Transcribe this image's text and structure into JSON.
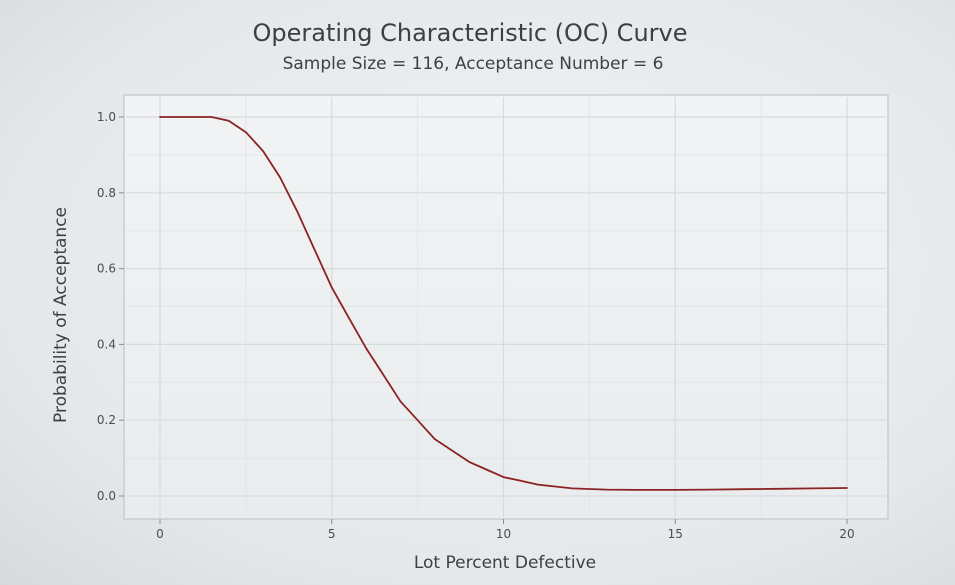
{
  "chart_data": {
    "type": "line",
    "title": "Operating Characteristic (OC) Curve",
    "subtitle": "Sample Size = 116, Acceptance Number = 6",
    "xlabel": "Lot Percent Defective",
    "ylabel": "Probability of Acceptance",
    "xlim": [
      0,
      20
    ],
    "ylim": [
      0,
      1
    ],
    "xticks": [
      0,
      5,
      10,
      15,
      20
    ],
    "xtick_labels": [
      "0",
      "5",
      "10",
      "15",
      "20"
    ],
    "yticks": [
      0.0,
      0.2,
      0.4,
      0.6,
      0.8,
      1.0
    ],
    "ytick_labels": [
      "0.0",
      "0.2",
      "0.4",
      "0.6",
      "0.8",
      "1.0"
    ],
    "grid": true,
    "series": [
      {
        "name": "OC",
        "color": "#8b2323",
        "x": [
          0,
          0.5,
          1,
          1.5,
          2,
          2.5,
          3,
          3.5,
          4,
          4.5,
          5,
          5.5,
          6,
          6.5,
          7,
          7.5,
          8,
          8.5,
          9,
          9.5,
          10,
          10.5,
          11,
          11.5,
          12,
          13,
          14,
          15,
          16,
          17,
          18,
          19,
          20
        ],
        "y": [
          1.0,
          1.0,
          1.0,
          1.0,
          0.99,
          0.96,
          0.91,
          0.84,
          0.75,
          0.65,
          0.55,
          0.47,
          0.39,
          0.32,
          0.25,
          0.2,
          0.15,
          0.12,
          0.09,
          0.07,
          0.05,
          0.04,
          0.03,
          0.025,
          0.02,
          0.017,
          0.016,
          0.016,
          0.017,
          0.018,
          0.019,
          0.02,
          0.021
        ]
      }
    ]
  }
}
